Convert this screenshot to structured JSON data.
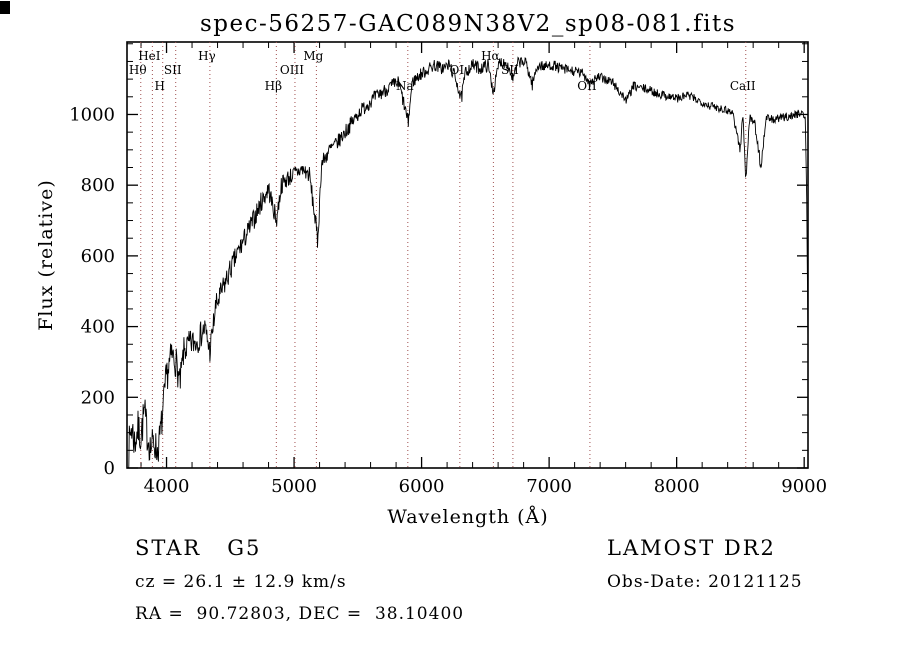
{
  "page": {
    "background": "#ffffff",
    "axis_color": "#000000"
  },
  "chart_data": {
    "type": "line",
    "title": "spec-56257-GAC089N38V2_sp08-081.fits",
    "xlabel": "Wavelength (Å)",
    "ylabel": "Flux (relative)",
    "xlim": [
      3690,
      9030
    ],
    "ylim": [
      0,
      1205
    ],
    "xticks": [
      4000,
      5000,
      6000,
      7000,
      8000,
      9000
    ],
    "yticks": [
      0,
      200,
      400,
      600,
      800,
      1000
    ],
    "x_minor_step": 200,
    "y_minor_step": 50,
    "grid": false,
    "legend": "none",
    "line_color": "#000000",
    "marker_color": "#a05050",
    "spectral_lines": [
      {
        "label": "Hθ",
        "wavelength": 3798,
        "row": 1
      },
      {
        "label": "HeI",
        "wavelength": 3889,
        "row": 0
      },
      {
        "label": "H",
        "wavelength": 3970,
        "row": 2
      },
      {
        "label": "SII",
        "wavelength": 4072,
        "row": 1
      },
      {
        "label": "Hγ",
        "wavelength": 4340,
        "row": 0
      },
      {
        "label": "Hβ",
        "wavelength": 4861,
        "row": 2
      },
      {
        "label": "OIII",
        "wavelength": 5007,
        "row": 1
      },
      {
        "label": "Mg",
        "wavelength": 5175,
        "row": 0
      },
      {
        "label": "Na",
        "wavelength": 5892,
        "row": 2
      },
      {
        "label": "OI",
        "wavelength": 6300,
        "row": 1
      },
      {
        "label": "Hα",
        "wavelength": 6563,
        "row": 0
      },
      {
        "label": "SII",
        "wavelength": 6716,
        "row": 1
      },
      {
        "label": "OII",
        "wavelength": 7320,
        "row": 2
      },
      {
        "label": "CaII",
        "wavelength": 8542,
        "row": 2
      }
    ],
    "series": [
      {
        "name": "flux",
        "comment": "anchors are [wavelength_A, flux_relative, noise_amplitude] sampled from the plotted spectrum",
        "anchors": [
          [
            3700,
            40,
            55
          ],
          [
            3725,
            120,
            60
          ],
          [
            3750,
            70,
            55
          ],
          [
            3775,
            110,
            55
          ],
          [
            3800,
            90,
            55
          ],
          [
            3825,
            160,
            55
          ],
          [
            3850,
            95,
            55
          ],
          [
            3875,
            55,
            50
          ],
          [
            3900,
            75,
            50
          ],
          [
            3930,
            45,
            45
          ],
          [
            3960,
            120,
            50
          ],
          [
            4000,
            260,
            50
          ],
          [
            4040,
            320,
            45
          ],
          [
            4075,
            300,
            45
          ],
          [
            4105,
            235,
            45
          ],
          [
            4135,
            330,
            40
          ],
          [
            4180,
            350,
            40
          ],
          [
            4240,
            360,
            40
          ],
          [
            4300,
            395,
            38
          ],
          [
            4340,
            330,
            35
          ],
          [
            4385,
            455,
            35
          ],
          [
            4440,
            505,
            35
          ],
          [
            4500,
            560,
            32
          ],
          [
            4560,
            610,
            32
          ],
          [
            4620,
            655,
            30
          ],
          [
            4680,
            700,
            30
          ],
          [
            4740,
            750,
            30
          ],
          [
            4800,
            790,
            28
          ],
          [
            4861,
            700,
            28
          ],
          [
            4900,
            800,
            26
          ],
          [
            4950,
            820,
            26
          ],
          [
            5000,
            830,
            26
          ],
          [
            5060,
            845,
            24
          ],
          [
            5120,
            830,
            24
          ],
          [
            5160,
            720,
            28
          ],
          [
            5185,
            640,
            30
          ],
          [
            5215,
            860,
            24
          ],
          [
            5280,
            900,
            24
          ],
          [
            5340,
            920,
            22
          ],
          [
            5400,
            950,
            22
          ],
          [
            5460,
            980,
            22
          ],
          [
            5520,
            1010,
            20
          ],
          [
            5580,
            1030,
            20
          ],
          [
            5640,
            1050,
            20
          ],
          [
            5700,
            1065,
            20
          ],
          [
            5760,
            1080,
            20
          ],
          [
            5820,
            1090,
            20
          ],
          [
            5868,
            1020,
            20
          ],
          [
            5895,
            975,
            20
          ],
          [
            5925,
            1090,
            18
          ],
          [
            5980,
            1110,
            18
          ],
          [
            6040,
            1125,
            18
          ],
          [
            6100,
            1140,
            18
          ],
          [
            6160,
            1130,
            18
          ],
          [
            6220,
            1140,
            18
          ],
          [
            6280,
            1090,
            20
          ],
          [
            6310,
            1040,
            22
          ],
          [
            6345,
            1120,
            18
          ],
          [
            6400,
            1140,
            18
          ],
          [
            6460,
            1130,
            18
          ],
          [
            6520,
            1140,
            18
          ],
          [
            6563,
            1065,
            18
          ],
          [
            6610,
            1150,
            16
          ],
          [
            6670,
            1145,
            16
          ],
          [
            6716,
            1100,
            16
          ],
          [
            6760,
            1150,
            16
          ],
          [
            6820,
            1145,
            16
          ],
          [
            6868,
            1085,
            18
          ],
          [
            6910,
            1140,
            16
          ],
          [
            6970,
            1135,
            15
          ],
          [
            7030,
            1140,
            15
          ],
          [
            7090,
            1130,
            15
          ],
          [
            7150,
            1125,
            15
          ],
          [
            7210,
            1120,
            15
          ],
          [
            7270,
            1115,
            15
          ],
          [
            7320,
            1090,
            15
          ],
          [
            7380,
            1105,
            14
          ],
          [
            7440,
            1100,
            14
          ],
          [
            7500,
            1090,
            14
          ],
          [
            7560,
            1060,
            14
          ],
          [
            7610,
            1040,
            15
          ],
          [
            7660,
            1080,
            13
          ],
          [
            7720,
            1075,
            13
          ],
          [
            7780,
            1070,
            13
          ],
          [
            7840,
            1060,
            13
          ],
          [
            7900,
            1055,
            13
          ],
          [
            7960,
            1050,
            13
          ],
          [
            8020,
            1045,
            13
          ],
          [
            8080,
            1055,
            13
          ],
          [
            8140,
            1045,
            12
          ],
          [
            8200,
            1035,
            12
          ],
          [
            8260,
            1025,
            12
          ],
          [
            8320,
            1020,
            12
          ],
          [
            8380,
            1015,
            12
          ],
          [
            8440,
            1005,
            12
          ],
          [
            8498,
            900,
            18
          ],
          [
            8520,
            1000,
            12
          ],
          [
            8542,
            810,
            18
          ],
          [
            8570,
            990,
            12
          ],
          [
            8610,
            980,
            12
          ],
          [
            8662,
            850,
            18
          ],
          [
            8700,
            990,
            12
          ],
          [
            8760,
            985,
            12
          ],
          [
            8820,
            990,
            12
          ],
          [
            8880,
            995,
            12
          ],
          [
            8940,
            1000,
            12
          ],
          [
            8985,
            1010,
            12
          ],
          [
            9010,
            980,
            15
          ],
          [
            9022,
            700,
            20
          ],
          [
            9030,
            360,
            20
          ]
        ]
      }
    ]
  },
  "footer": {
    "class_label": "STAR   G5",
    "survey": "LAMOST DR2",
    "cz": "cz = 26.1 ± 12.9 km/s",
    "obs_date": "Obs-Date: 20121125",
    "ra_dec": "RA =  90.72803, DEC =  38.10400"
  }
}
